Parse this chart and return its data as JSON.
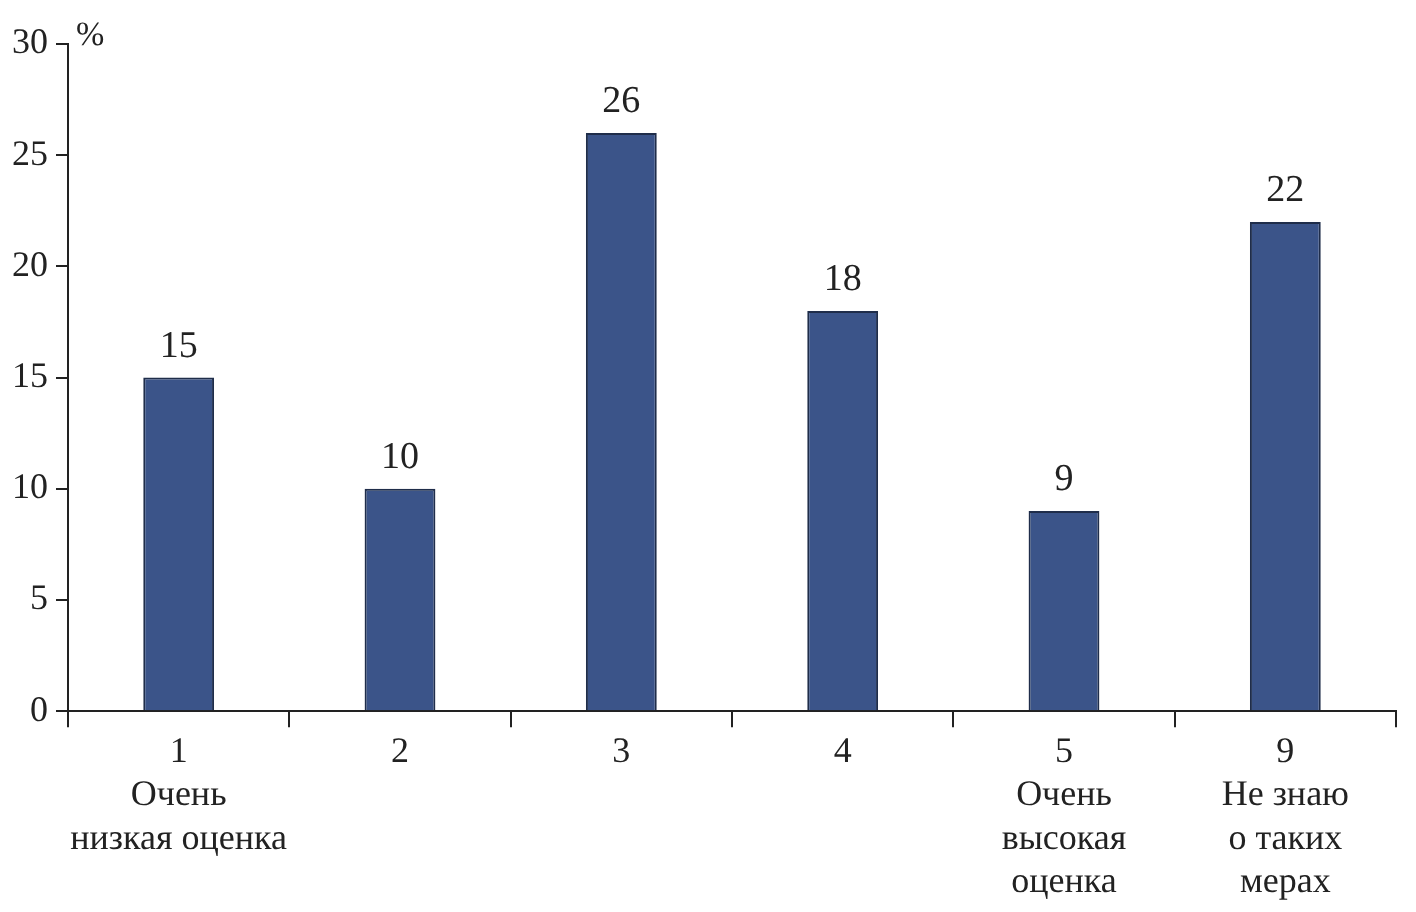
{
  "chart_data": {
    "type": "bar",
    "ylabel": "%",
    "categories": [
      "1\nОчень\nнизкая оценка",
      "2",
      "3",
      "4",
      "5\nОчень\nвысокая\nоценка",
      "9\nНе знаю\nо таких\nмерах"
    ],
    "values": [
      15,
      10,
      26,
      18,
      9,
      22
    ],
    "color": "#3b5489",
    "ylim": [
      0,
      30
    ],
    "yticks": [
      0,
      5,
      10,
      15,
      20,
      25,
      30
    ],
    "grid": false,
    "data_labels": true
  }
}
